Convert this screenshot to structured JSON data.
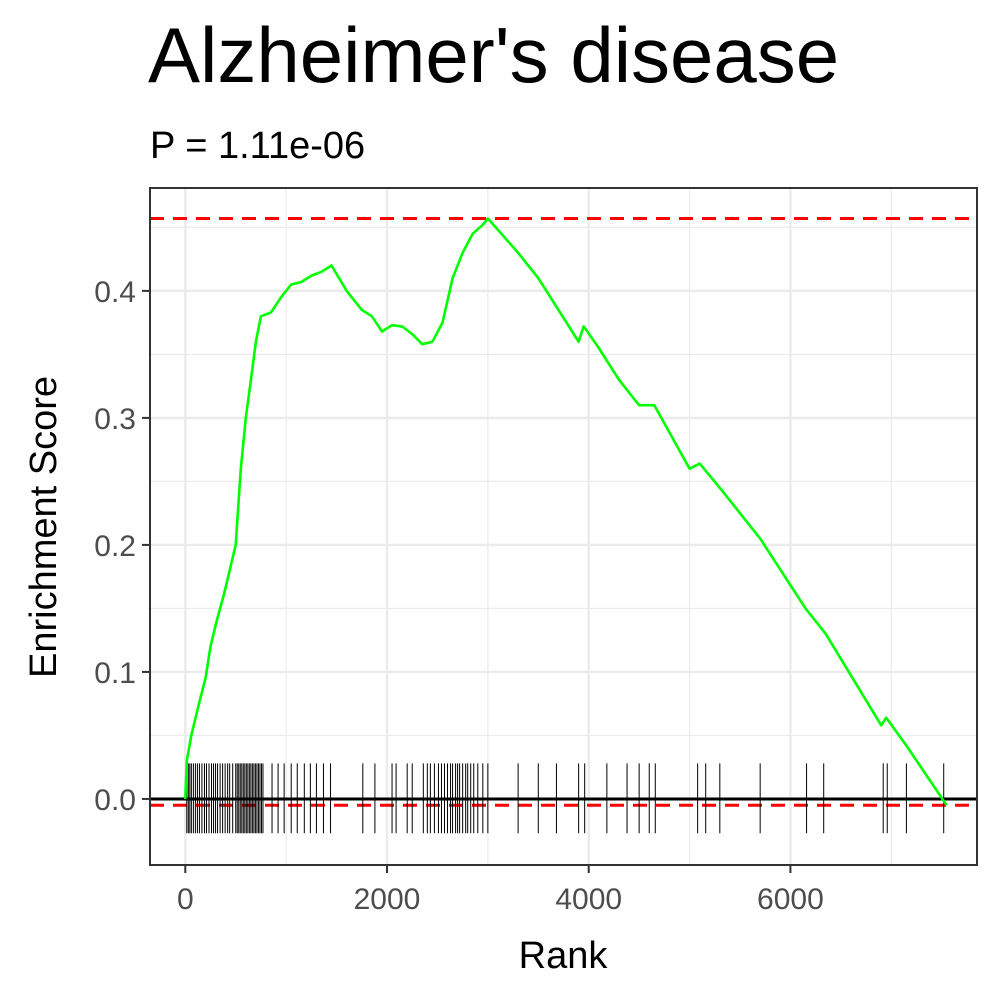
{
  "chart_data": {
    "type": "line",
    "title": "Alzheimer's disease",
    "subtitle": "P = 1.11e-06",
    "xlabel": "Rank",
    "ylabel": "Enrichment Score",
    "xlim": [
      -350,
      7850
    ],
    "ylim": [
      -0.052,
      0.481
    ],
    "x_ticks": [
      0,
      2000,
      4000,
      6000
    ],
    "x_tick_labels": [
      "0",
      "2000",
      "4000",
      "6000"
    ],
    "y_ticks": [
      0.0,
      0.1,
      0.2,
      0.3,
      0.4
    ],
    "y_tick_labels": [
      "0.0",
      "0.1",
      "0.2",
      "0.3",
      "0.4"
    ],
    "grid": true,
    "max_es": 0.457,
    "min_es": -0.005,
    "colors": {
      "curve": "#00ff00",
      "threshold": "#ff0000",
      "zero_line": "#000000",
      "ticks": "#000000",
      "grid": "#ebebeb",
      "panel_border": "#333333"
    },
    "series": [
      {
        "values": [
          [
            0,
            0.0
          ],
          [
            15,
            0.03
          ],
          [
            60,
            0.05
          ],
          [
            120,
            0.07
          ],
          [
            200,
            0.095
          ],
          [
            250,
            0.12
          ],
          [
            310,
            0.14
          ],
          [
            380,
            0.16
          ],
          [
            440,
            0.18
          ],
          [
            500,
            0.2
          ],
          [
            550,
            0.26
          ],
          [
            600,
            0.3
          ],
          [
            650,
            0.33
          ],
          [
            700,
            0.36
          ],
          [
            750,
            0.38
          ],
          [
            850,
            0.383
          ],
          [
            950,
            0.395
          ],
          [
            1050,
            0.405
          ],
          [
            1150,
            0.407
          ],
          [
            1250,
            0.412
          ],
          [
            1350,
            0.415
          ],
          [
            1450,
            0.42
          ],
          [
            1600,
            0.4
          ],
          [
            1750,
            0.385
          ],
          [
            1850,
            0.38
          ],
          [
            1950,
            0.368
          ],
          [
            2050,
            0.373
          ],
          [
            2150,
            0.372
          ],
          [
            2250,
            0.366
          ],
          [
            2350,
            0.358
          ],
          [
            2450,
            0.36
          ],
          [
            2550,
            0.375
          ],
          [
            2650,
            0.41
          ],
          [
            2750,
            0.43
          ],
          [
            2850,
            0.445
          ],
          [
            2950,
            0.452
          ],
          [
            3000,
            0.457
          ],
          [
            3300,
            0.43
          ],
          [
            3500,
            0.41
          ],
          [
            3700,
            0.385
          ],
          [
            3900,
            0.36
          ],
          [
            3950,
            0.372
          ],
          [
            4100,
            0.355
          ],
          [
            4300,
            0.33
          ],
          [
            4500,
            0.31
          ],
          [
            4650,
            0.31
          ],
          [
            5000,
            0.26
          ],
          [
            5100,
            0.264
          ],
          [
            5300,
            0.245
          ],
          [
            5700,
            0.205
          ],
          [
            6150,
            0.15
          ],
          [
            6350,
            0.13
          ],
          [
            6900,
            0.058
          ],
          [
            6950,
            0.064
          ],
          [
            7150,
            0.042
          ],
          [
            7550,
            -0.005
          ]
        ]
      }
    ],
    "hit_ranks": [
      15,
      30,
      45,
      60,
      80,
      100,
      120,
      140,
      165,
      190,
      210,
      235,
      260,
      280,
      300,
      320,
      345,
      370,
      395,
      420,
      440,
      470,
      500,
      515,
      530,
      545,
      560,
      575,
      590,
      605,
      620,
      635,
      650,
      665,
      680,
      695,
      710,
      725,
      740,
      755,
      770,
      860,
      920,
      980,
      1050,
      1110,
      1180,
      1240,
      1300,
      1370,
      1440,
      1760,
      1880,
      2050,
      2090,
      2200,
      2250,
      2360,
      2400,
      2430,
      2470,
      2510,
      2540,
      2570,
      2600,
      2630,
      2650,
      2680,
      2700,
      2720,
      2750,
      2780,
      2800,
      2830,
      2860,
      2900,
      2950,
      3000,
      3300,
      3500,
      3680,
      3900,
      3960,
      4180,
      4380,
      4500,
      4600,
      4660,
      5080,
      5160,
      5300,
      5700,
      6160,
      6330,
      6920,
      6960,
      7150,
      7520
    ]
  }
}
